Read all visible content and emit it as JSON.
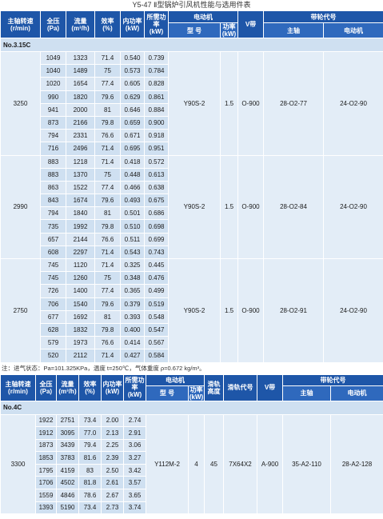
{
  "title": "Y5-47 Ⅱ型锅炉引风机性能与选用件表",
  "table1": {
    "headers": {
      "speed": "主轴转速",
      "speed_unit": "(r/min)",
      "pressure": "全压",
      "pressure_unit": "(Pa)",
      "flow": "流量",
      "flow_unit": "(m³/h)",
      "eff": "效率",
      "eff_unit": "(%)",
      "int_power": "内功率",
      "int_power_unit": "(kW)",
      "req_power": "所需功率",
      "req_power_unit": "(kW)",
      "motor": "电动机",
      "model": "型 号",
      "motor_power": "功率(kW)",
      "vbelt": "V带",
      "pulley": "带轮代号",
      "shaft": "主轴",
      "motor2": "电动机"
    },
    "section_label": "No.3.15C",
    "groups": [
      {
        "speed": "3250",
        "motor_model": "Y90S-2",
        "motor_power": "1.5",
        "vbelt": "O-900",
        "shaft_pulley": "28-O2-77",
        "motor_pulley": "24-O2-90",
        "rows": [
          [
            "1049",
            "1323",
            "71.4",
            "0.540",
            "0.739"
          ],
          [
            "1040",
            "1489",
            "75",
            "0.573",
            "0.784"
          ],
          [
            "1020",
            "1654",
            "77.4",
            "0.605",
            "0.828"
          ],
          [
            "990",
            "1820",
            "79.6",
            "0.629",
            "0.861"
          ],
          [
            "941",
            "2000",
            "81",
            "0.646",
            "0.884"
          ],
          [
            "873",
            "2166",
            "79.8",
            "0.659",
            "0.900"
          ],
          [
            "794",
            "2331",
            "76.6",
            "0.671",
            "0.918"
          ],
          [
            "716",
            "2496",
            "71.4",
            "0.695",
            "0.951"
          ]
        ]
      },
      {
        "speed": "2990",
        "motor_model": "Y90S-2",
        "motor_power": "1.5",
        "vbelt": "O-900",
        "shaft_pulley": "28-O2-84",
        "motor_pulley": "24-O2-90",
        "rows": [
          [
            "883",
            "1218",
            "71.4",
            "0.418",
            "0.572"
          ],
          [
            "883",
            "1370",
            "75",
            "0.448",
            "0.613"
          ],
          [
            "863",
            "1522",
            "77.4",
            "0.466",
            "0.638"
          ],
          [
            "843",
            "1674",
            "79.6",
            "0.493",
            "0.675"
          ],
          [
            "794",
            "1840",
            "81",
            "0.501",
            "0.686"
          ],
          [
            "735",
            "1992",
            "79.8",
            "0.510",
            "0.698"
          ],
          [
            "657",
            "2144",
            "76.6",
            "0.511",
            "0.699"
          ],
          [
            "608",
            "2297",
            "71.4",
            "0.543",
            "0.743"
          ]
        ]
      },
      {
        "speed": "2750",
        "motor_model": "Y90S-2",
        "motor_power": "1.5",
        "vbelt": "O-900",
        "shaft_pulley": "28-O2-91",
        "motor_pulley": "24-O2-90",
        "rows": [
          [
            "745",
            "1120",
            "71.4",
            "0.325",
            "0.445"
          ],
          [
            "745",
            "1260",
            "75",
            "0.348",
            "0.476"
          ],
          [
            "726",
            "1400",
            "77.4",
            "0.365",
            "0.499"
          ],
          [
            "706",
            "1540",
            "79.6",
            "0.379",
            "0.519"
          ],
          [
            "677",
            "1692",
            "81",
            "0.393",
            "0.548"
          ],
          [
            "628",
            "1832",
            "79.8",
            "0.400",
            "0.547"
          ],
          [
            "579",
            "1973",
            "76.6",
            "0.414",
            "0.567"
          ],
          [
            "520",
            "2112",
            "71.4",
            "0.427",
            "0.584"
          ]
        ]
      }
    ]
  },
  "note": "注：进气状态：Pa=101.325KPa，温度 t=250℃，气体重度 ρ=0.672 kg/m³。",
  "table2": {
    "headers": {
      "speed": "主轴转速",
      "speed_unit": "(r/min)",
      "pressure": "全压",
      "pressure_unit": "(Pa)",
      "flow": "流量",
      "flow_unit": "(m³/h)",
      "eff": "效率",
      "eff_unit": "(%)",
      "int_power": "内功率",
      "int_power_unit": "(kW)",
      "req_power": "所需功率",
      "req_power_unit": "(kW)",
      "motor": "电动机",
      "model": "型 号",
      "motor_power": "功率(kW)",
      "pulley_height": "滑轨高度",
      "rail_code": "滑轨代号",
      "vbelt": "V带",
      "pulley": "带轮代号",
      "shaft": "主轴",
      "motor2": "电动机"
    },
    "section_label": "No.4C",
    "group": {
      "speed": "3300",
      "motor_model": "Y112M-2",
      "motor_power": "4",
      "rail_height": "45",
      "rail_code": "7X64X2",
      "vbelt": "A-900",
      "shaft_pulley": "35-A2-110",
      "motor_pulley": "28-A2-128",
      "rows": [
        [
          "1922",
          "2751",
          "73.4",
          "2.00",
          "2.74"
        ],
        [
          "1912",
          "3095",
          "77.0",
          "2.13",
          "2.91"
        ],
        [
          "1873",
          "3439",
          "79.4",
          "2.25",
          "3.06"
        ],
        [
          "1853",
          "3783",
          "81.6",
          "2.39",
          "3.27"
        ],
        [
          "1795",
          "4159",
          "83",
          "2.50",
          "3.42"
        ],
        [
          "1706",
          "4502",
          "81.8",
          "2.61",
          "3.57"
        ],
        [
          "1559",
          "4846",
          "78.6",
          "2.67",
          "3.65"
        ],
        [
          "1393",
          "5190",
          "73.4",
          "2.73",
          "3.74"
        ]
      ]
    }
  }
}
